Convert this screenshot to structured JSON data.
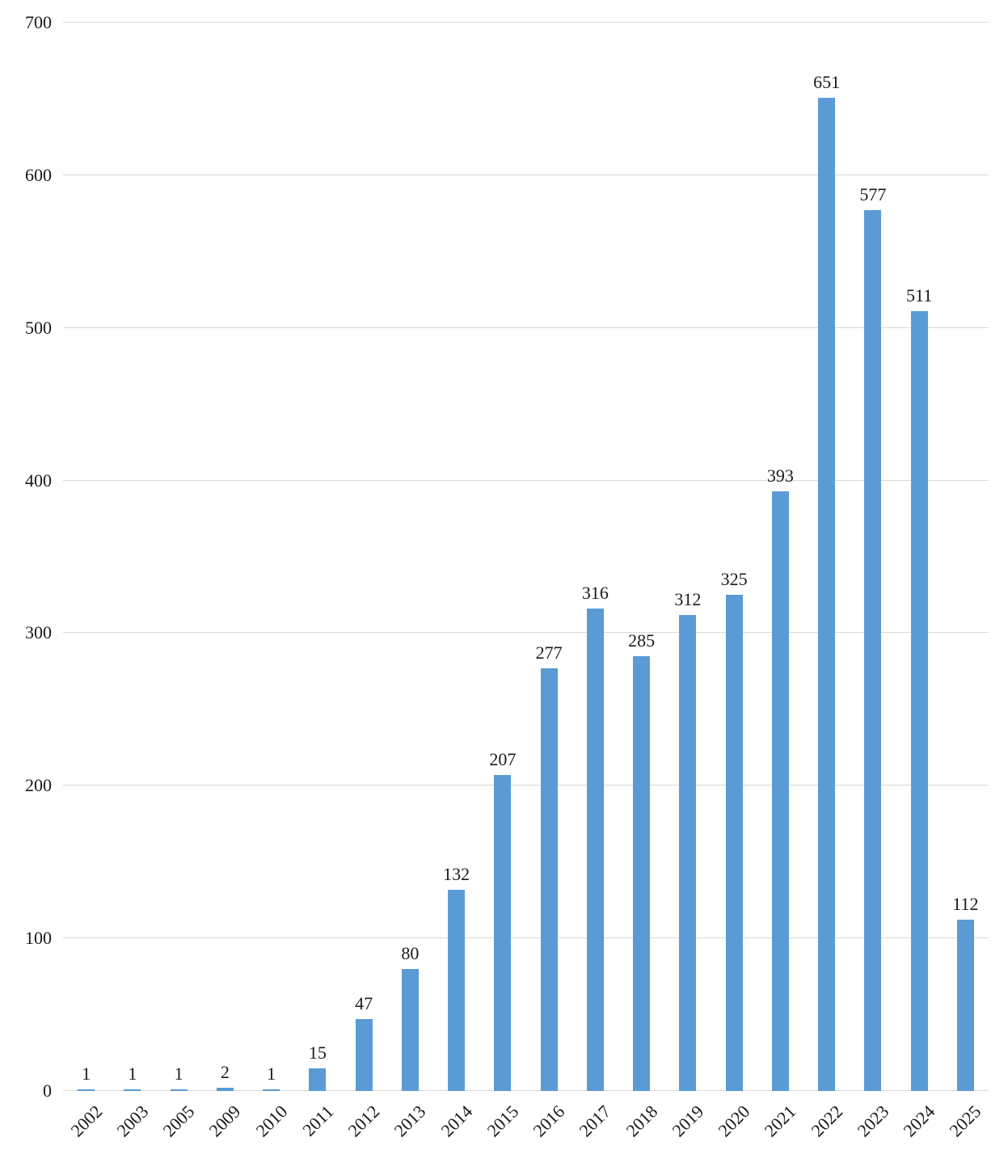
{
  "chart_data": {
    "type": "bar",
    "categories": [
      "2002",
      "2003",
      "2005",
      "2009",
      "2010",
      "2011",
      "2012",
      "2013",
      "2014",
      "2015",
      "2016",
      "2017",
      "2018",
      "2019",
      "2020",
      "2021",
      "2022",
      "2023",
      "2024",
      "2025"
    ],
    "values": [
      1,
      1,
      1,
      2,
      1,
      15,
      47,
      80,
      132,
      207,
      277,
      316,
      285,
      312,
      325,
      393,
      651,
      577,
      511,
      112
    ],
    "title": "",
    "xlabel": "",
    "ylabel": "",
    "ylim": [
      0,
      700
    ],
    "yticks": [
      0,
      100,
      200,
      300,
      400,
      500,
      600,
      700
    ],
    "grid": true,
    "legend": "none",
    "bar_color": "#5B9BD5",
    "gridline_color": "#D9D9D9",
    "text_color": "#1A1A1A"
  }
}
